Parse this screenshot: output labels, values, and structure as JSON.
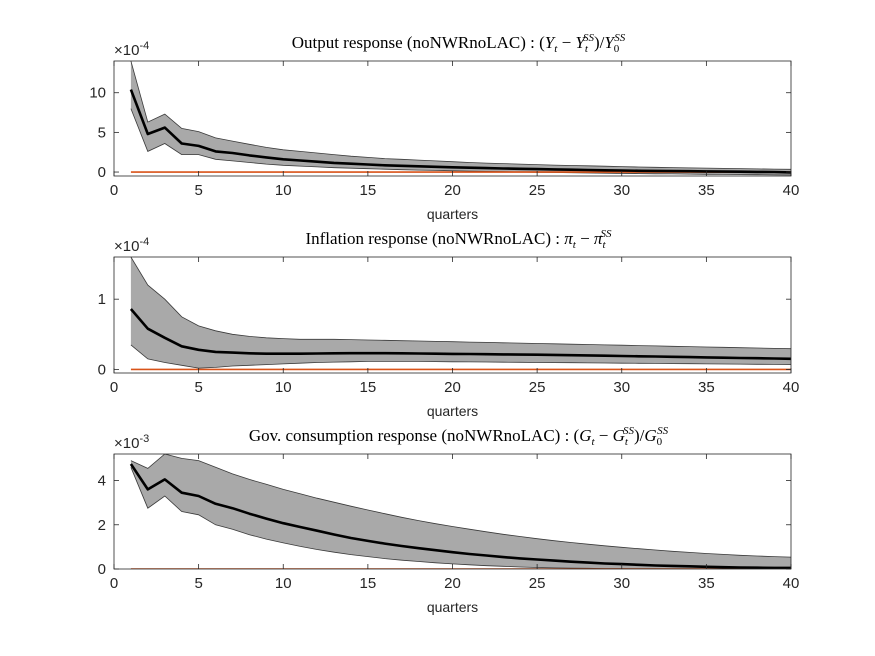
{
  "colors": {
    "band_fill": "#a9a9a9",
    "band_edge": "#3a3a3a",
    "median_line": "#000000",
    "zero_line": "#d95319",
    "axis": "#262626"
  },
  "chart_data": [
    {
      "type": "line",
      "title_parts": {
        "prefix": "Output response (noNWRnoLAC) : (",
        "a": "Y",
        "a_sub": "t",
        "minus": " − ",
        "b": "Y",
        "b_sub": "t",
        "b_sup": "SS",
        "mid": ")/",
        "c": "Y",
        "c_sub": "0",
        "c_sup": "SS"
      },
      "xlabel": "quarters",
      "exponent_base": "×10",
      "exponent_power": "-4",
      "xlim": [
        0,
        40
      ],
      "ylim": [
        -0.5,
        14
      ],
      "xticks": [
        0,
        5,
        10,
        15,
        20,
        25,
        30,
        35,
        40
      ],
      "yticks": [
        0,
        5,
        10
      ],
      "x": [
        1,
        2,
        3,
        4,
        5,
        6,
        7,
        8,
        9,
        10,
        11,
        12,
        13,
        14,
        15,
        16,
        17,
        18,
        19,
        20,
        21,
        22,
        23,
        24,
        25,
        26,
        27,
        28,
        29,
        30,
        31,
        32,
        33,
        34,
        35,
        36,
        37,
        38,
        39,
        40
      ],
      "median": [
        10.4,
        4.8,
        5.6,
        3.6,
        3.3,
        2.6,
        2.4,
        2.1,
        1.85,
        1.6,
        1.45,
        1.3,
        1.15,
        1.05,
        0.95,
        0.85,
        0.78,
        0.72,
        0.66,
        0.6,
        0.55,
        0.5,
        0.45,
        0.41,
        0.37,
        0.33,
        0.29,
        0.26,
        0.22,
        0.19,
        0.16,
        0.14,
        0.12,
        0.1,
        0.08,
        0.06,
        0.04,
        0.02,
        0.0,
        -0.05
      ],
      "upper": [
        14,
        6.3,
        7.3,
        5.5,
        5.1,
        4.3,
        3.9,
        3.5,
        3.1,
        2.8,
        2.6,
        2.4,
        2.2,
        2.0,
        1.85,
        1.7,
        1.6,
        1.5,
        1.4,
        1.3,
        1.2,
        1.13,
        1.06,
        1.0,
        0.94,
        0.88,
        0.83,
        0.78,
        0.73,
        0.68,
        0.64,
        0.6,
        0.56,
        0.52,
        0.49,
        0.46,
        0.43,
        0.4,
        0.37,
        0.34
      ],
      "lower": [
        8.0,
        2.6,
        3.6,
        2.2,
        2.2,
        1.6,
        1.4,
        1.2,
        1.0,
        0.85,
        0.75,
        0.65,
        0.55,
        0.48,
        0.42,
        0.36,
        0.3,
        0.25,
        0.2,
        0.16,
        0.12,
        0.08,
        0.04,
        0.0,
        -0.03,
        -0.06,
        -0.09,
        -0.12,
        -0.15,
        -0.18,
        -0.2,
        -0.22,
        -0.24,
        -0.26,
        -0.28,
        -0.3,
        -0.32,
        -0.34,
        -0.36,
        -0.38
      ],
      "zero_value": 0
    },
    {
      "type": "line",
      "title_parts": {
        "prefix": "Inflation response (noNWRnoLAC) : ",
        "a": "π",
        "a_sub": "t",
        "minus": " − ",
        "b": "π",
        "b_sub": "t",
        "b_sup": "SS"
      },
      "xlabel": "quarters",
      "exponent_base": "×10",
      "exponent_power": "-4",
      "xlim": [
        0,
        40
      ],
      "ylim": [
        -0.05,
        1.6
      ],
      "xticks": [
        0,
        5,
        10,
        15,
        20,
        25,
        30,
        35,
        40
      ],
      "yticks": [
        0,
        1
      ],
      "x": [
        1,
        2,
        3,
        4,
        5,
        6,
        7,
        8,
        9,
        10,
        11,
        12,
        13,
        14,
        15,
        16,
        17,
        18,
        19,
        20,
        21,
        22,
        23,
        24,
        25,
        26,
        27,
        28,
        29,
        30,
        31,
        32,
        33,
        34,
        35,
        36,
        37,
        38,
        39,
        40
      ],
      "median": [
        0.86,
        0.58,
        0.45,
        0.33,
        0.28,
        0.25,
        0.24,
        0.23,
        0.225,
        0.225,
        0.225,
        0.228,
        0.23,
        0.232,
        0.232,
        0.232,
        0.23,
        0.228,
        0.225,
        0.222,
        0.22,
        0.218,
        0.215,
        0.212,
        0.21,
        0.207,
        0.203,
        0.2,
        0.196,
        0.192,
        0.188,
        0.184,
        0.18,
        0.176,
        0.172,
        0.168,
        0.164,
        0.16,
        0.156,
        0.152
      ],
      "upper": [
        1.6,
        1.2,
        1.0,
        0.75,
        0.62,
        0.55,
        0.5,
        0.47,
        0.45,
        0.44,
        0.43,
        0.43,
        0.43,
        0.425,
        0.42,
        0.415,
        0.41,
        0.405,
        0.4,
        0.395,
        0.39,
        0.385,
        0.38,
        0.375,
        0.37,
        0.365,
        0.36,
        0.355,
        0.35,
        0.345,
        0.34,
        0.335,
        0.33,
        0.325,
        0.32,
        0.315,
        0.31,
        0.305,
        0.3,
        0.295
      ],
      "lower": [
        0.35,
        0.15,
        0.1,
        0.06,
        0.02,
        0.03,
        0.05,
        0.06,
        0.07,
        0.08,
        0.09,
        0.1,
        0.105,
        0.11,
        0.115,
        0.115,
        0.115,
        0.115,
        0.112,
        0.11,
        0.108,
        0.106,
        0.104,
        0.102,
        0.1,
        0.098,
        0.096,
        0.094,
        0.092,
        0.09,
        0.088,
        0.086,
        0.084,
        0.082,
        0.08,
        0.078,
        0.076,
        0.074,
        0.072,
        0.07
      ],
      "zero_value": 0
    },
    {
      "type": "line",
      "title_parts": {
        "prefix": "Gov. consumption response (noNWRnoLAC) : (",
        "a": "G",
        "a_sub": "t",
        "minus": " − ",
        "b": "G",
        "b_sub": "t",
        "b_sup": "SS",
        "mid": ")/",
        "c": "G",
        "c_sub": "0",
        "c_sup": "SS"
      },
      "xlabel": "quarters",
      "exponent_base": "×10",
      "exponent_power": "-3",
      "xlim": [
        0,
        40
      ],
      "ylim": [
        0,
        5.2
      ],
      "xticks": [
        0,
        5,
        10,
        15,
        20,
        25,
        30,
        35,
        40
      ],
      "yticks": [
        0,
        2,
        4
      ],
      "x": [
        1,
        2,
        3,
        4,
        5,
        6,
        7,
        8,
        9,
        10,
        11,
        12,
        13,
        14,
        15,
        16,
        17,
        18,
        19,
        20,
        21,
        22,
        23,
        24,
        25,
        26,
        27,
        28,
        29,
        30,
        31,
        32,
        33,
        34,
        35,
        36,
        37,
        38,
        39,
        40
      ],
      "median": [
        4.75,
        3.6,
        4.05,
        3.45,
        3.3,
        2.95,
        2.75,
        2.5,
        2.28,
        2.07,
        1.9,
        1.73,
        1.56,
        1.4,
        1.27,
        1.15,
        1.04,
        0.94,
        0.85,
        0.76,
        0.68,
        0.61,
        0.54,
        0.48,
        0.43,
        0.38,
        0.33,
        0.29,
        0.25,
        0.22,
        0.19,
        0.16,
        0.14,
        0.12,
        0.1,
        0.08,
        0.07,
        0.06,
        0.05,
        0.05
      ],
      "upper": [
        4.9,
        4.55,
        5.2,
        5.0,
        4.9,
        4.6,
        4.3,
        4.05,
        3.83,
        3.6,
        3.4,
        3.2,
        3.02,
        2.84,
        2.67,
        2.5,
        2.34,
        2.19,
        2.05,
        1.92,
        1.8,
        1.68,
        1.57,
        1.47,
        1.37,
        1.28,
        1.2,
        1.12,
        1.05,
        0.98,
        0.92,
        0.86,
        0.8,
        0.75,
        0.7,
        0.66,
        0.62,
        0.59,
        0.56,
        0.54
      ],
      "lower": [
        4.6,
        2.75,
        3.3,
        2.6,
        2.45,
        2.0,
        1.8,
        1.55,
        1.35,
        1.18,
        1.02,
        0.88,
        0.76,
        0.65,
        0.56,
        0.47,
        0.4,
        0.34,
        0.28,
        0.23,
        0.19,
        0.15,
        0.12,
        0.09,
        0.07,
        0.05,
        0.04,
        0.03,
        0.02,
        0.015,
        0.01,
        0.008,
        0.006,
        0.005,
        0.004,
        0.003,
        0.002,
        0.002,
        0.001,
        0.001
      ],
      "zero_value": 0
    }
  ]
}
